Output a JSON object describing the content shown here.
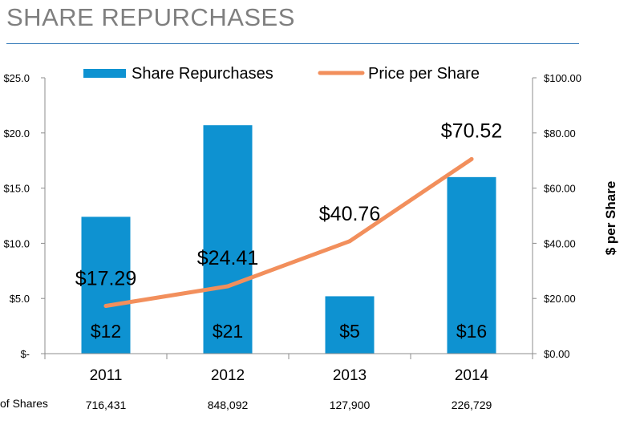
{
  "title": "SHARE REPURCHASES",
  "chart_data": {
    "type": "bar+line",
    "categories": [
      "2011",
      "2012",
      "2013",
      "2014"
    ],
    "series": [
      {
        "name": "Share Repurchases",
        "type": "bar",
        "axis": "left",
        "values": [
          12.4,
          20.7,
          5.2,
          16.0
        ],
        "data_labels": [
          "$12",
          "$21",
          "$5",
          "$16"
        ],
        "color": "#0e92d1"
      },
      {
        "name": "Price per Share",
        "type": "line",
        "axis": "right",
        "values": [
          17.29,
          24.41,
          40.76,
          70.52
        ],
        "data_labels": [
          "$17.29",
          "$24.41",
          "$40.76",
          "$70.52"
        ],
        "color": "#f28f5c"
      }
    ],
    "left_axis": {
      "ylim": [
        0,
        25
      ],
      "ticks": [
        0,
        5,
        10,
        15,
        20,
        25
      ],
      "tick_labels": [
        "$-",
        "$5.0",
        "$10.0",
        "$15.0",
        "$20.0",
        "$25.0"
      ]
    },
    "right_axis": {
      "ylim": [
        0,
        100
      ],
      "ticks": [
        0,
        20,
        40,
        60,
        80,
        100
      ],
      "tick_labels": [
        "$0.00",
        "$20.00",
        "$40.00",
        "$60.00",
        "$80.00",
        "$100.00"
      ],
      "label": "$ per Share"
    },
    "legend_position": "top",
    "grid": false,
    "shares_row": {
      "label": "of Shares",
      "values": [
        "716,431",
        "848,092",
        "127,900",
        "226,729"
      ]
    }
  }
}
